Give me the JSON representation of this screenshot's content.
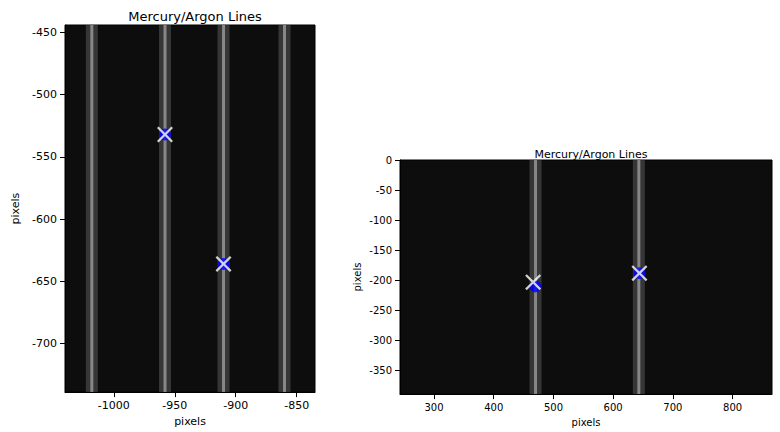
{
  "chart_data": [
    {
      "type": "scatter",
      "title": "Mercury/Argon Lines",
      "x_label": "pixels",
      "y_label": "pixels",
      "xlim": [
        -1040,
        -835
      ],
      "ylim": [
        -739,
        -444
      ],
      "xticks": [
        -1000,
        -950,
        -900,
        -850
      ],
      "yticks": [
        -700,
        -650,
        -600,
        -550,
        -500,
        -450
      ],
      "emission_lines_x": [
        -1018,
        -958,
        -910,
        -860
      ],
      "series": [
        {
          "marker": "o",
          "color": "#0000ff",
          "x": [
            -958,
            -910
          ],
          "y": [
            -532,
            -636
          ]
        },
        {
          "marker": "x",
          "color": "#ffffff",
          "x": [
            -958,
            -910
          ],
          "y": [
            -532,
            -636
          ]
        }
      ]
    },
    {
      "type": "scatter",
      "title": "Mercury/Argon Lines",
      "x_label": "pixels",
      "y_label": "pixels",
      "xlim": [
        243,
        866
      ],
      "ylim": [
        -389,
        0
      ],
      "xticks": [
        300,
        400,
        500,
        600,
        700,
        800
      ],
      "yticks": [
        -350,
        -300,
        -250,
        -200,
        -150,
        -100,
        -50,
        0
      ],
      "emission_lines_x": [
        470,
        643
      ],
      "series": [
        {
          "marker": "o",
          "color": "#0000ff",
          "x": [
            470,
            644
          ],
          "y": [
            -210,
            -188
          ]
        },
        {
          "marker": "x",
          "color": "#ffffff",
          "x": [
            466,
            644
          ],
          "y": [
            -203,
            -188
          ]
        }
      ]
    }
  ]
}
